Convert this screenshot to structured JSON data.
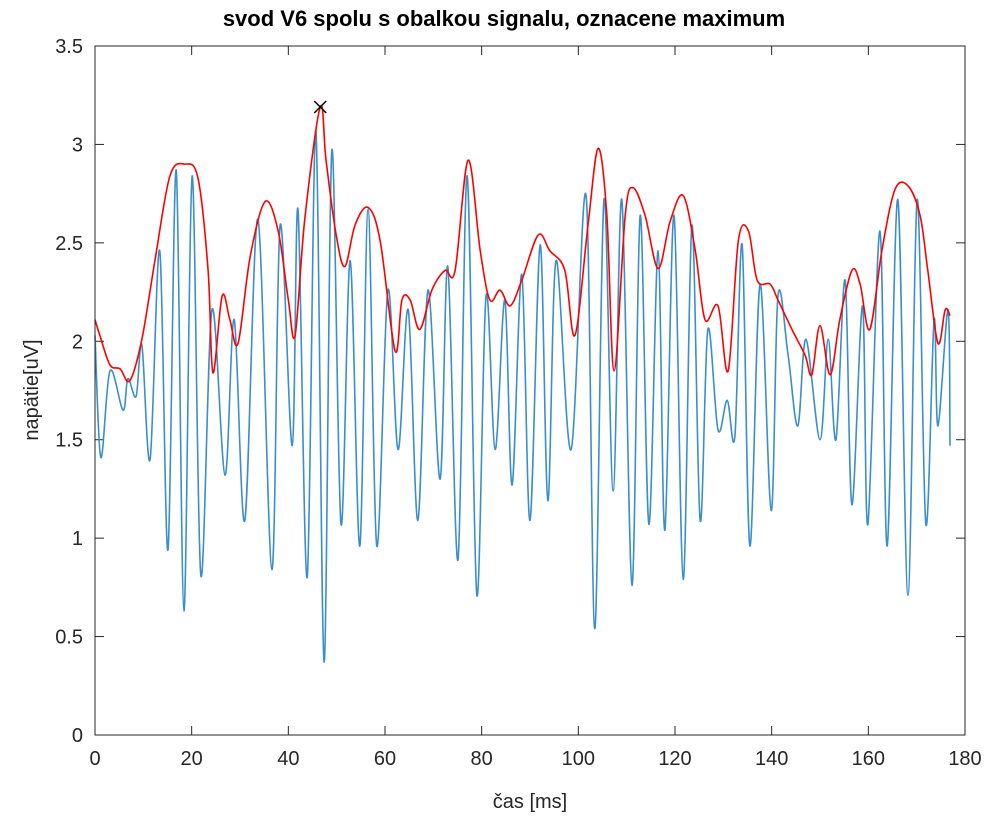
{
  "chart_data": {
    "type": "line",
    "title": "svod  V6 spolu s obalkou signalu, oznacene maximum",
    "xlabel": "čas [ms]",
    "ylabel": "napätie[uV]",
    "xlim": [
      0,
      180
    ],
    "xticks": [
      0,
      20,
      40,
      60,
      80,
      100,
      120,
      140,
      160,
      180
    ],
    "ylim": [
      0,
      3.5
    ],
    "yticks": [
      0,
      0.5,
      1,
      1.5,
      2,
      2.5,
      3,
      3.5
    ],
    "grid": false,
    "series": [
      {
        "color": "#3a8fcb",
        "x": [
          0,
          1.2,
          3.1,
          5.8,
          6.8,
          8.5,
          9.7,
          11.4,
          13.4,
          15.1,
          16.8,
          18.4,
          20.1,
          21.9,
          24.2,
          26.9,
          28.8,
          31.0,
          33.7,
          36.6,
          38.3,
          40.8,
          42.0,
          43.9,
          45.7,
          47.4,
          49.0,
          50.9,
          52.8,
          54.8,
          56.5,
          58.3,
          60.6,
          62.7,
          64.8,
          66.8,
          68.9,
          71.4,
          73.0,
          75.1,
          77.0,
          79.0,
          80.9,
          82.8,
          84.8,
          86.3,
          88.3,
          90.0,
          92.1,
          93.7,
          95.4,
          98.5,
          101.6,
          103.4,
          105.3,
          107.2,
          109.0,
          111.1,
          112.8,
          114.6,
          116.5,
          117.9,
          119.8,
          121.7,
          123.5,
          125.2,
          126.8,
          128.9,
          130.8,
          132.4,
          133.9,
          135.5,
          137.6,
          139.9,
          141.3,
          143.4,
          145.4,
          147.1,
          150.0,
          151.7,
          153.3,
          155.2,
          156.6,
          158.8,
          159.9,
          162.4,
          163.9,
          166.1,
          168.2,
          170.1,
          171.9,
          173.6,
          174.4,
          176.5,
          176.9
        ],
        "values": [
          2.03,
          1.41,
          1.85,
          1.65,
          1.81,
          1.72,
          1.98,
          1.4,
          2.46,
          0.94,
          2.87,
          0.63,
          2.84,
          0.81,
          2.16,
          1.32,
          2.11,
          1.09,
          2.62,
          0.84,
          2.59,
          1.47,
          2.67,
          0.8,
          3.07,
          0.37,
          2.97,
          1.07,
          2.41,
          0.96,
          2.67,
          0.96,
          2.26,
          1.45,
          2.16,
          1.09,
          2.26,
          1.3,
          2.38,
          0.89,
          2.84,
          0.71,
          2.23,
          1.45,
          2.21,
          1.27,
          2.34,
          1.09,
          2.49,
          1.19,
          2.41,
          1.45,
          2.74,
          0.54,
          2.72,
          1.24,
          2.72,
          0.76,
          2.64,
          1.07,
          2.46,
          1.04,
          2.64,
          0.79,
          2.59,
          1.09,
          2.06,
          1.55,
          1.7,
          1.52,
          2.49,
          0.96,
          2.29,
          1.14,
          2.23,
          1.93,
          1.57,
          2.01,
          1.5,
          2.01,
          1.5,
          2.31,
          1.17,
          2.18,
          1.07,
          2.56,
          0.96,
          2.72,
          0.71,
          2.72,
          1.07,
          2.11,
          1.57,
          2.16,
          1.47
        ]
      },
      {
        "color": "#ff0000",
        "x": [
          0,
          1.0,
          3.1,
          5.2,
          7.2,
          9.7,
          12.4,
          15.5,
          18.6,
          21.3,
          23.4,
          24.4,
          26.3,
          27.9,
          29.6,
          32.1,
          35.2,
          37.9,
          40.0,
          41.4,
          43.4,
          46.6,
          47.8,
          49.9,
          51.7,
          53.8,
          56.5,
          59.0,
          62.1,
          63.5,
          65.2,
          67.2,
          69.7,
          72.4,
          74.5,
          77.2,
          79.7,
          81.7,
          83.8,
          85.9,
          88.3,
          91.7,
          94.1,
          97.2,
          99.3,
          102.0,
          104.1,
          105.9,
          107.4,
          109.7,
          111.3,
          113.8,
          116.5,
          119.0,
          121.7,
          124.2,
          126.2,
          128.9,
          131.0,
          133.1,
          135.2,
          137.0,
          139.7,
          141.3,
          144.2,
          146.9,
          148.3,
          150.0,
          152.1,
          154.1,
          156.6,
          158.3,
          160.3,
          162.8,
          165.5,
          168.2,
          170.7,
          172.3,
          174.4,
          175.9,
          176.9
        ],
        "values": [
          2.11,
          2.03,
          1.88,
          1.86,
          1.8,
          2.01,
          2.41,
          2.84,
          2.9,
          2.83,
          2.36,
          1.84,
          2.23,
          2.11,
          1.99,
          2.43,
          2.71,
          2.56,
          2.21,
          2.03,
          2.62,
          3.19,
          2.92,
          2.54,
          2.38,
          2.59,
          2.68,
          2.51,
          1.95,
          2.21,
          2.21,
          2.06,
          2.26,
          2.36,
          2.36,
          2.92,
          2.46,
          2.21,
          2.26,
          2.18,
          2.31,
          2.54,
          2.46,
          2.36,
          2.03,
          2.59,
          2.98,
          2.64,
          1.85,
          2.64,
          2.78,
          2.64,
          2.37,
          2.61,
          2.74,
          2.46,
          2.11,
          2.18,
          1.85,
          2.51,
          2.56,
          2.31,
          2.29,
          2.21,
          2.06,
          1.93,
          1.83,
          2.08,
          1.83,
          2.11,
          2.36,
          2.29,
          2.06,
          2.46,
          2.77,
          2.79,
          2.64,
          2.36,
          1.99,
          2.16,
          2.13
        ]
      }
    ],
    "marker": {
      "x": 46.6,
      "y": 3.19,
      "color": "#000000"
    }
  }
}
